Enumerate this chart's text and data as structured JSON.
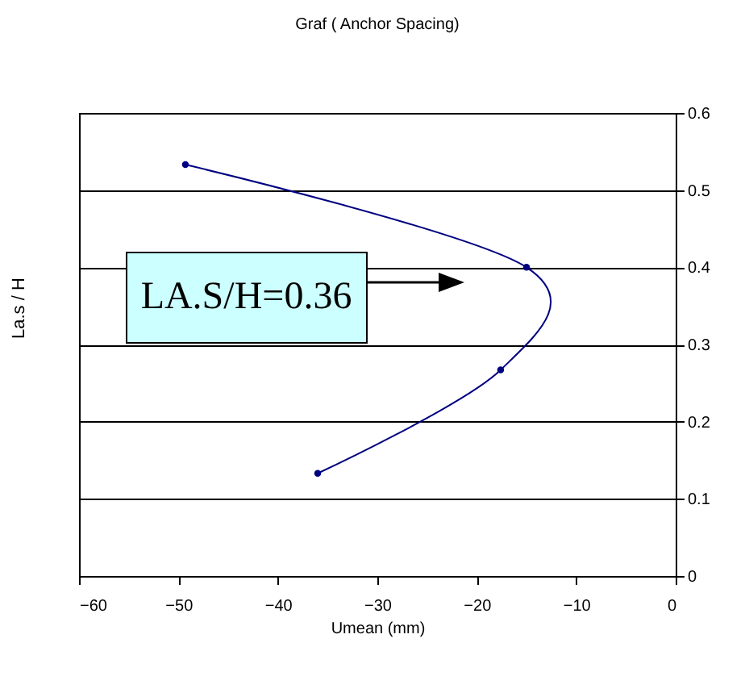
{
  "chart_data": {
    "type": "line",
    "title": "Graf ( Anchor Spacing)",
    "xlabel": "Umean (mm)",
    "ylabel": "La.s / H",
    "x": [
      -36,
      -17.6,
      -15,
      -49.3
    ],
    "series": [
      {
        "color": "#000080",
        "values": [
          0.133,
          0.267,
          0.4,
          0.533
        ]
      }
    ],
    "xlim": [
      -60,
      0
    ],
    "xticks": [
      -60,
      -50,
      -40,
      -30,
      -20,
      -10,
      0
    ],
    "ylim": [
      0,
      0.6
    ],
    "yticks": [
      0,
      0.1,
      0.2,
      0.3,
      0.4,
      0.5,
      0.6
    ],
    "grid": "y",
    "marker": "circle",
    "line_style": "solid",
    "annotations": [
      "LA.S/H=0.36"
    ]
  }
}
